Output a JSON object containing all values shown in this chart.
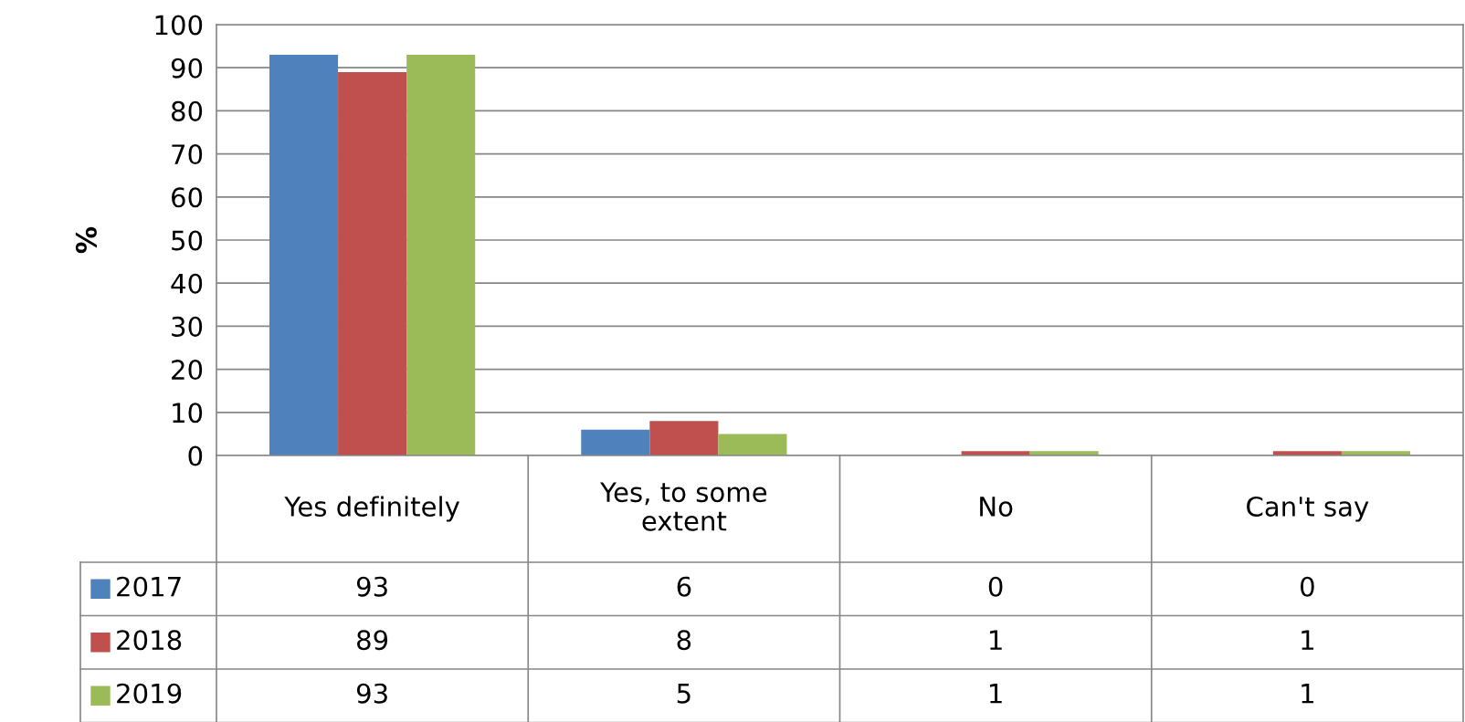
{
  "chart_data": {
    "type": "bar",
    "ylabel": "%",
    "categories": [
      "Yes definitely",
      "Yes, to some\nextent",
      "No",
      "Can't say"
    ],
    "series": [
      {
        "name": "2017",
        "color": "#4f81bd",
        "values": [
          93,
          6,
          0,
          0
        ]
      },
      {
        "name": "2018",
        "color": "#c0504d",
        "values": [
          89,
          8,
          1,
          1
        ]
      },
      {
        "name": "2019",
        "color": "#9bbb59",
        "values": [
          93,
          5,
          1,
          1
        ]
      }
    ],
    "ylim": [
      0,
      100
    ],
    "yticks": [
      0,
      10,
      20,
      30,
      40,
      50,
      60,
      70,
      80,
      90,
      100
    ],
    "grid": "y",
    "data_labels": true,
    "legend": "bottom left"
  }
}
